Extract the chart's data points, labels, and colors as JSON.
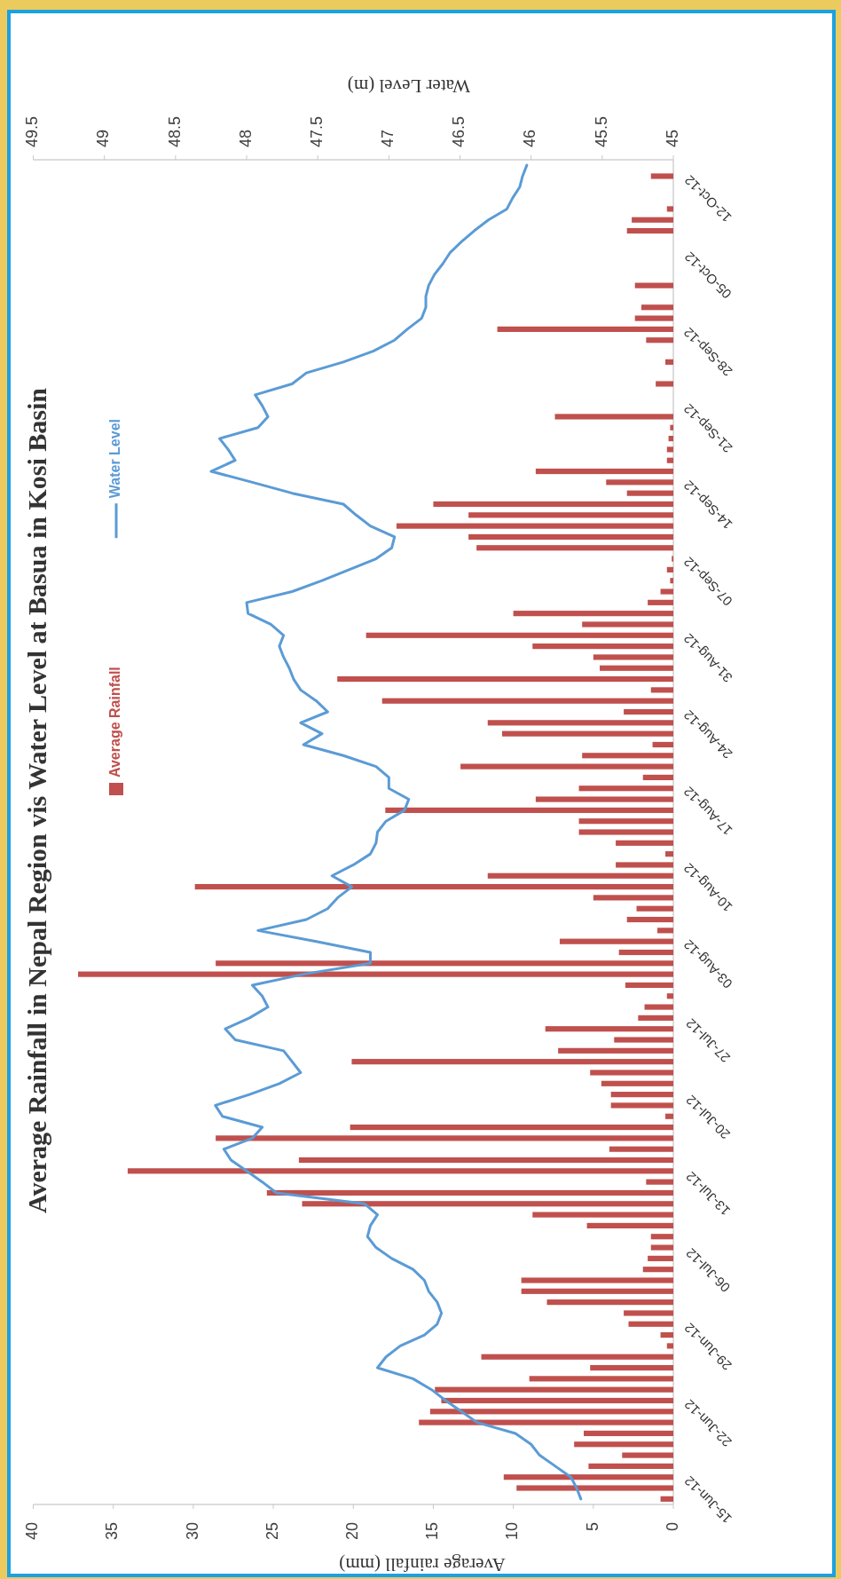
{
  "chart_data": {
    "type": "bar",
    "orientation": "horizontal",
    "title": "Average Rainfall in Nepal Region vis Water Level at Basua in Kosi Basin",
    "xlabel": "Average rainfall (mm)",
    "x2label": "Water Level (m)",
    "categories": [
      null,
      null,
      null,
      "12-Oct-12",
      null,
      null,
      null,
      null,
      null,
      null,
      "05-Oct-12",
      null,
      null,
      null,
      null,
      null,
      null,
      "28-Sep-12",
      null,
      null,
      null,
      null,
      null,
      null,
      "21-Sep-12",
      null,
      null,
      null,
      null,
      null,
      null,
      "14-Sep-12",
      null,
      null,
      null,
      null,
      null,
      null,
      "07-Sep-12",
      null,
      null,
      null,
      null,
      null,
      null,
      "31-Aug-12",
      null,
      null,
      null,
      null,
      null,
      null,
      "24-Aug-12",
      null,
      null,
      null,
      null,
      null,
      null,
      "17-Aug-12",
      null,
      null,
      null,
      null,
      null,
      null,
      "10-Aug-12",
      null,
      null,
      null,
      null,
      null,
      null,
      "03-Aug-12",
      null,
      null,
      null,
      null,
      null,
      null,
      "27-Jul-12",
      null,
      null,
      null,
      null,
      null,
      null,
      "20-Jul-12",
      null,
      null,
      null,
      null,
      null,
      null,
      "13-Jul-12",
      null,
      null,
      null,
      null,
      null,
      null,
      "06-Jul-12",
      null,
      null,
      null,
      null,
      null,
      null,
      "29-Jun-12",
      null,
      null,
      null,
      null,
      null,
      null,
      "22-Jun-12",
      null,
      null,
      null,
      null,
      null,
      null,
      "15-Jun-12"
    ],
    "series": [
      {
        "name": "Average Rainfall",
        "color": "#c0504d",
        "values": [
          0,
          1.4,
          0,
          0,
          0.4,
          2.6,
          2.9,
          0,
          0,
          0,
          0,
          2.4,
          0,
          2.0,
          2.4,
          11.0,
          1.7,
          0,
          0.5,
          0,
          1.1,
          0,
          0,
          7.4,
          0.2,
          0.3,
          0.4,
          0.4,
          8.6,
          4.2,
          2.9,
          15.0,
          12.8,
          17.3,
          12.8,
          12.3,
          0.1,
          0.4,
          0.2,
          0.8,
          1.6,
          10.0,
          5.7,
          19.2,
          8.8,
          5.0,
          4.6,
          21.0,
          1.4,
          18.2,
          3.1,
          11.6,
          10.7,
          1.3,
          5.7,
          13.3,
          1.9,
          5.9,
          8.6,
          18.0,
          5.9,
          5.9,
          3.6,
          0.5,
          3.6,
          11.6,
          29.9,
          5.0,
          2.3,
          2.9,
          1.0,
          7.1,
          3.4,
          28.6,
          37.2,
          3.0,
          0.4,
          1.8,
          2.2,
          8.0,
          3.7,
          7.2,
          20.1,
          5.2,
          4.5,
          3.9,
          3.9,
          0.5,
          20.2,
          28.6,
          4.0,
          23.4,
          34.1,
          1.7,
          25.4,
          23.2,
          8.8,
          5.4,
          1.4,
          1.4,
          1.6,
          1.9,
          9.5,
          9.5,
          7.9,
          3.1,
          2.8,
          0.8,
          0.4,
          12.0,
          5.2,
          9.0,
          14.9,
          14.5,
          15.2,
          15.9,
          5.6,
          6.2,
          3.2,
          5.3,
          10.6,
          9.8,
          0.8
        ]
      },
      {
        "name": "Water Level",
        "type": "line",
        "axis": "x2",
        "color": "#5b9bd5",
        "values": [
          46.03,
          46.06,
          46.08,
          46.13,
          46.17,
          46.3,
          46.4,
          46.49,
          46.57,
          46.62,
          46.68,
          46.72,
          46.74,
          46.74,
          46.77,
          46.87,
          46.96,
          47.11,
          47.32,
          47.58,
          47.68,
          47.94,
          47.89,
          47.85,
          47.92,
          48.19,
          48.13,
          48.08,
          48.25,
          47.96,
          47.68,
          47.32,
          47.23,
          47.13,
          46.96,
          46.98,
          47.09,
          47.28,
          47.47,
          47.68,
          48.0,
          47.99,
          47.83,
          47.74,
          47.77,
          47.74,
          47.7,
          47.67,
          47.62,
          47.51,
          47.43,
          47.62,
          47.47,
          47.6,
          47.32,
          47.09,
          47.0,
          47.0,
          46.86,
          46.89,
          47.02,
          47.08,
          47.09,
          47.13,
          47.25,
          47.4,
          47.26,
          47.36,
          47.43,
          47.58,
          47.92,
          47.51,
          47.13,
          47.13,
          47.6,
          47.96,
          47.89,
          47.85,
          47.98,
          48.15,
          48.08,
          47.74,
          47.68,
          47.62,
          47.77,
          47.98,
          48.22,
          48.17,
          47.89,
          47.96,
          48.16,
          48.11,
          48.0,
          47.89,
          47.79,
          47.17,
          47.08,
          47.13,
          47.15,
          47.09,
          46.98,
          46.83,
          46.75,
          46.72,
          46.66,
          46.63,
          46.66,
          46.75,
          46.92,
          47.02,
          47.08,
          46.83,
          46.7,
          46.6,
          46.49,
          46.38,
          46.11,
          46.0,
          45.94,
          45.83,
          45.72,
          45.68,
          45.65
        ]
      }
    ],
    "xlim": [
      40,
      0
    ],
    "xticks": [
      40,
      35,
      30,
      25,
      20,
      15,
      10,
      5,
      0
    ],
    "x2lim": [
      49.5,
      45
    ],
    "x2ticks": [
      49.5,
      49,
      48.5,
      48,
      47.5,
      47,
      46.5,
      46,
      45.5,
      45
    ],
    "legend": "left"
  }
}
